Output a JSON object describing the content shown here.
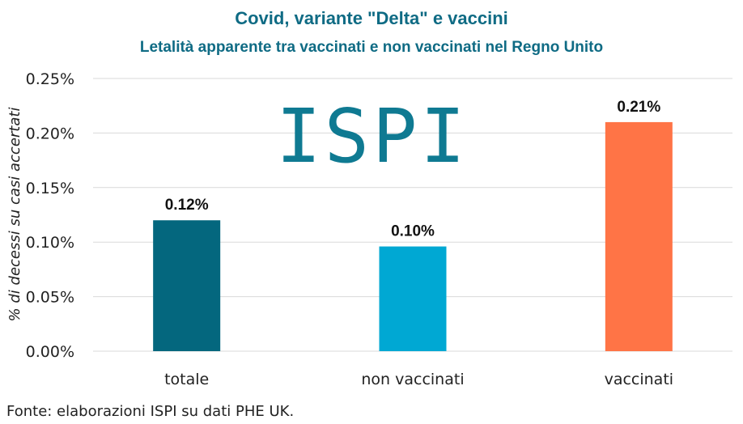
{
  "chart_data": {
    "type": "bar",
    "title": "Covid, variante \"Delta\" e vaccini",
    "subtitle": "Letalità apparente tra vaccinati e non vaccinati nel Regno Unito",
    "ylabel": "% di decessi su casi accertati",
    "xlabel": "",
    "categories": [
      "totale",
      "non vaccinati",
      "vaccinati"
    ],
    "values": [
      0.12,
      0.096,
      0.21
    ],
    "data_labels": [
      "0.12%",
      "0.10%",
      "0.21%"
    ],
    "colors": [
      "#04677e",
      "#00a8d3",
      "#ff7446"
    ],
    "ylim": [
      0,
      0.25
    ],
    "yticks": [
      0,
      0.05,
      0.1,
      0.15,
      0.2,
      0.25
    ],
    "ytick_labels": [
      "0.00%",
      "0.05%",
      "0.10%",
      "0.15%",
      "0.20%",
      "0.25%"
    ],
    "grid": true
  },
  "logo": {
    "text": "ISPI",
    "color": "#0f7a92"
  },
  "source": "Fonte: elaborazioni ISPI su dati PHE UK."
}
